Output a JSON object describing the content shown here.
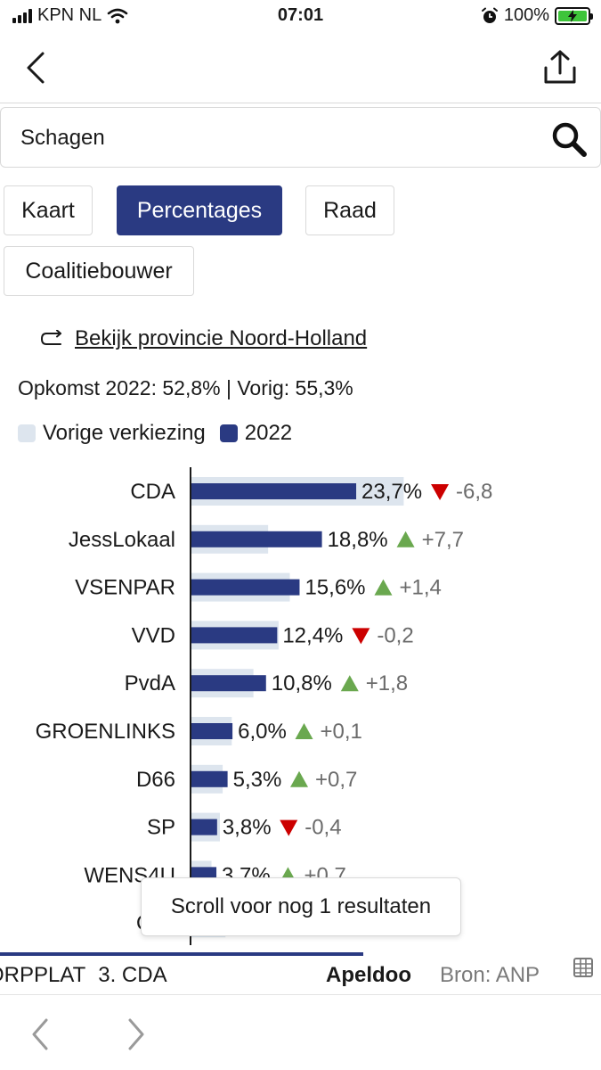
{
  "status": {
    "carrier": "KPN NL",
    "time": "07:01",
    "battery": "100%"
  },
  "search": {
    "value": "Schagen"
  },
  "tabs": [
    {
      "label": "Kaart",
      "active": false
    },
    {
      "label": "Percentages",
      "active": true
    },
    {
      "label": "Raad",
      "active": false
    },
    {
      "label": "Coalitiebouwer",
      "active": false
    }
  ],
  "province_link": "Bekijk provincie Noord-Holland",
  "turnout": "Opkomst 2022: 52,8% | Vorig: 55,3%",
  "legend": {
    "previous": "Vorige verkiezing",
    "current": "2022"
  },
  "colors": {
    "accent": "#2a3a82",
    "previous_bar": "#dde5ee",
    "up": "#6aa84f",
    "down": "#cc0000"
  },
  "chart_data": {
    "type": "bar",
    "orientation": "horizontal",
    "series": [
      {
        "name": "Vorige verkiezing",
        "values": [
          30.5,
          11.1,
          14.2,
          12.6,
          9.0,
          5.9,
          4.6,
          4.2,
          3.0,
          5.0
        ]
      },
      {
        "name": "2022",
        "values": [
          23.7,
          18.8,
          15.6,
          12.4,
          10.8,
          6.0,
          5.3,
          3.8,
          3.7,
          4.0
        ]
      }
    ],
    "rows": [
      {
        "party": "CDA",
        "label": "23,7%",
        "change": "-6,8",
        "direction": "down"
      },
      {
        "party": "JessLokaal",
        "label": "18,8%",
        "change": "+7,7",
        "direction": "up"
      },
      {
        "party": "VSENPAR",
        "label": "15,6%",
        "change": "+1,4",
        "direction": "up"
      },
      {
        "party": "VVD",
        "label": "12,4%",
        "change": "-0,2",
        "direction": "down"
      },
      {
        "party": "PvdA",
        "label": "10,8%",
        "change": "+1,8",
        "direction": "up"
      },
      {
        "party": "GROENLINKS",
        "label": "6,0%",
        "change": "+0,1",
        "direction": "up"
      },
      {
        "party": "D66",
        "label": "5,3%",
        "change": "+0,7",
        "direction": "up"
      },
      {
        "party": "SP",
        "label": "3,8%",
        "change": "-0,4",
        "direction": "down"
      },
      {
        "party": "WENS4U",
        "label": "3,7%",
        "change": "+0,7",
        "direction": "up"
      },
      {
        "party": "Ove",
        "label": "",
        "change": "",
        "direction": ""
      }
    ]
  },
  "tooltip": "Scroll voor nog 1 resultaten",
  "ticker": {
    "text_a": "ORPPLAT",
    "text_b": "3. CDA",
    "text_c": "Apeldoo",
    "source": "Bron: ANP"
  }
}
